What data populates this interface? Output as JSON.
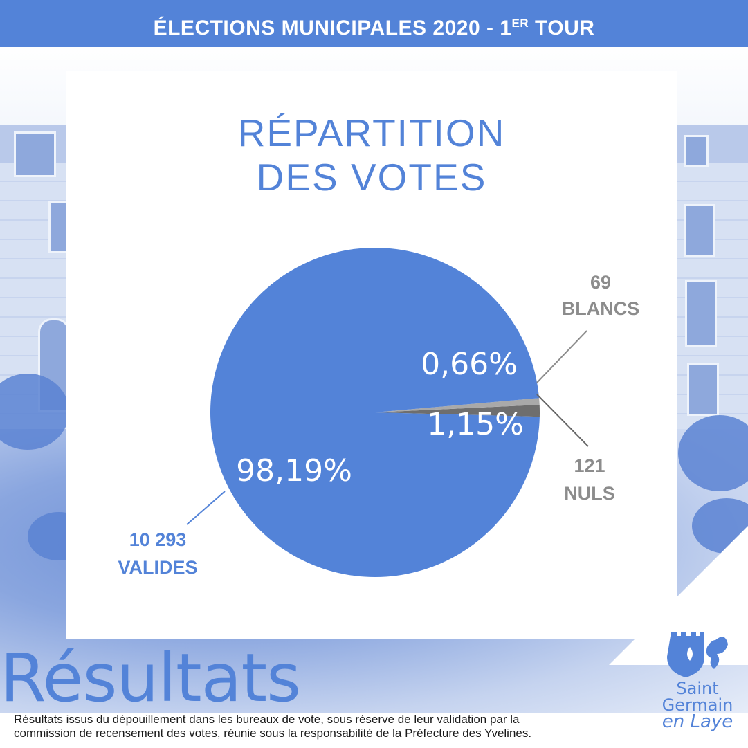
{
  "header": {
    "banner_main": "ÉLECTIONS MUNICIPALES 2020 - 1",
    "banner_sup": "ER",
    "banner_end": " TOUR"
  },
  "title": {
    "line1": "RÉPARTITION",
    "line2": "DES VOTES"
  },
  "chart_data": {
    "type": "pie",
    "title": "RÉPARTITION DES VOTES",
    "slices": [
      {
        "name": "VALIDES",
        "count": "10 293",
        "pct_label": "98,19%",
        "value": 98.19,
        "color": "#5383d8"
      },
      {
        "name": "NULS",
        "count": "121",
        "pct_label": "1,15%",
        "value": 1.15,
        "color": "#6e6e6e"
      },
      {
        "name": "BLANCS",
        "count": "69",
        "pct_label": "0,66%",
        "value": 0.66,
        "color": "#a9a9a9"
      }
    ]
  },
  "colors": {
    "accent": "#5383d8",
    "label_grey": "#8c8c8c"
  },
  "footer": {
    "big_word": "Résultats",
    "note_line1": "Résultats issus du dépouillement dans les bureaux de vote, sous réserve de leur validation par la",
    "note_line2": "commission de recensement des votes, réunie sous la responsabilité de la Préfecture des Yvelines."
  },
  "logo": {
    "line1": "Saint",
    "line2": "Germain",
    "line3": "en Laye",
    "icon": "city-coat-of-arms-icon"
  }
}
